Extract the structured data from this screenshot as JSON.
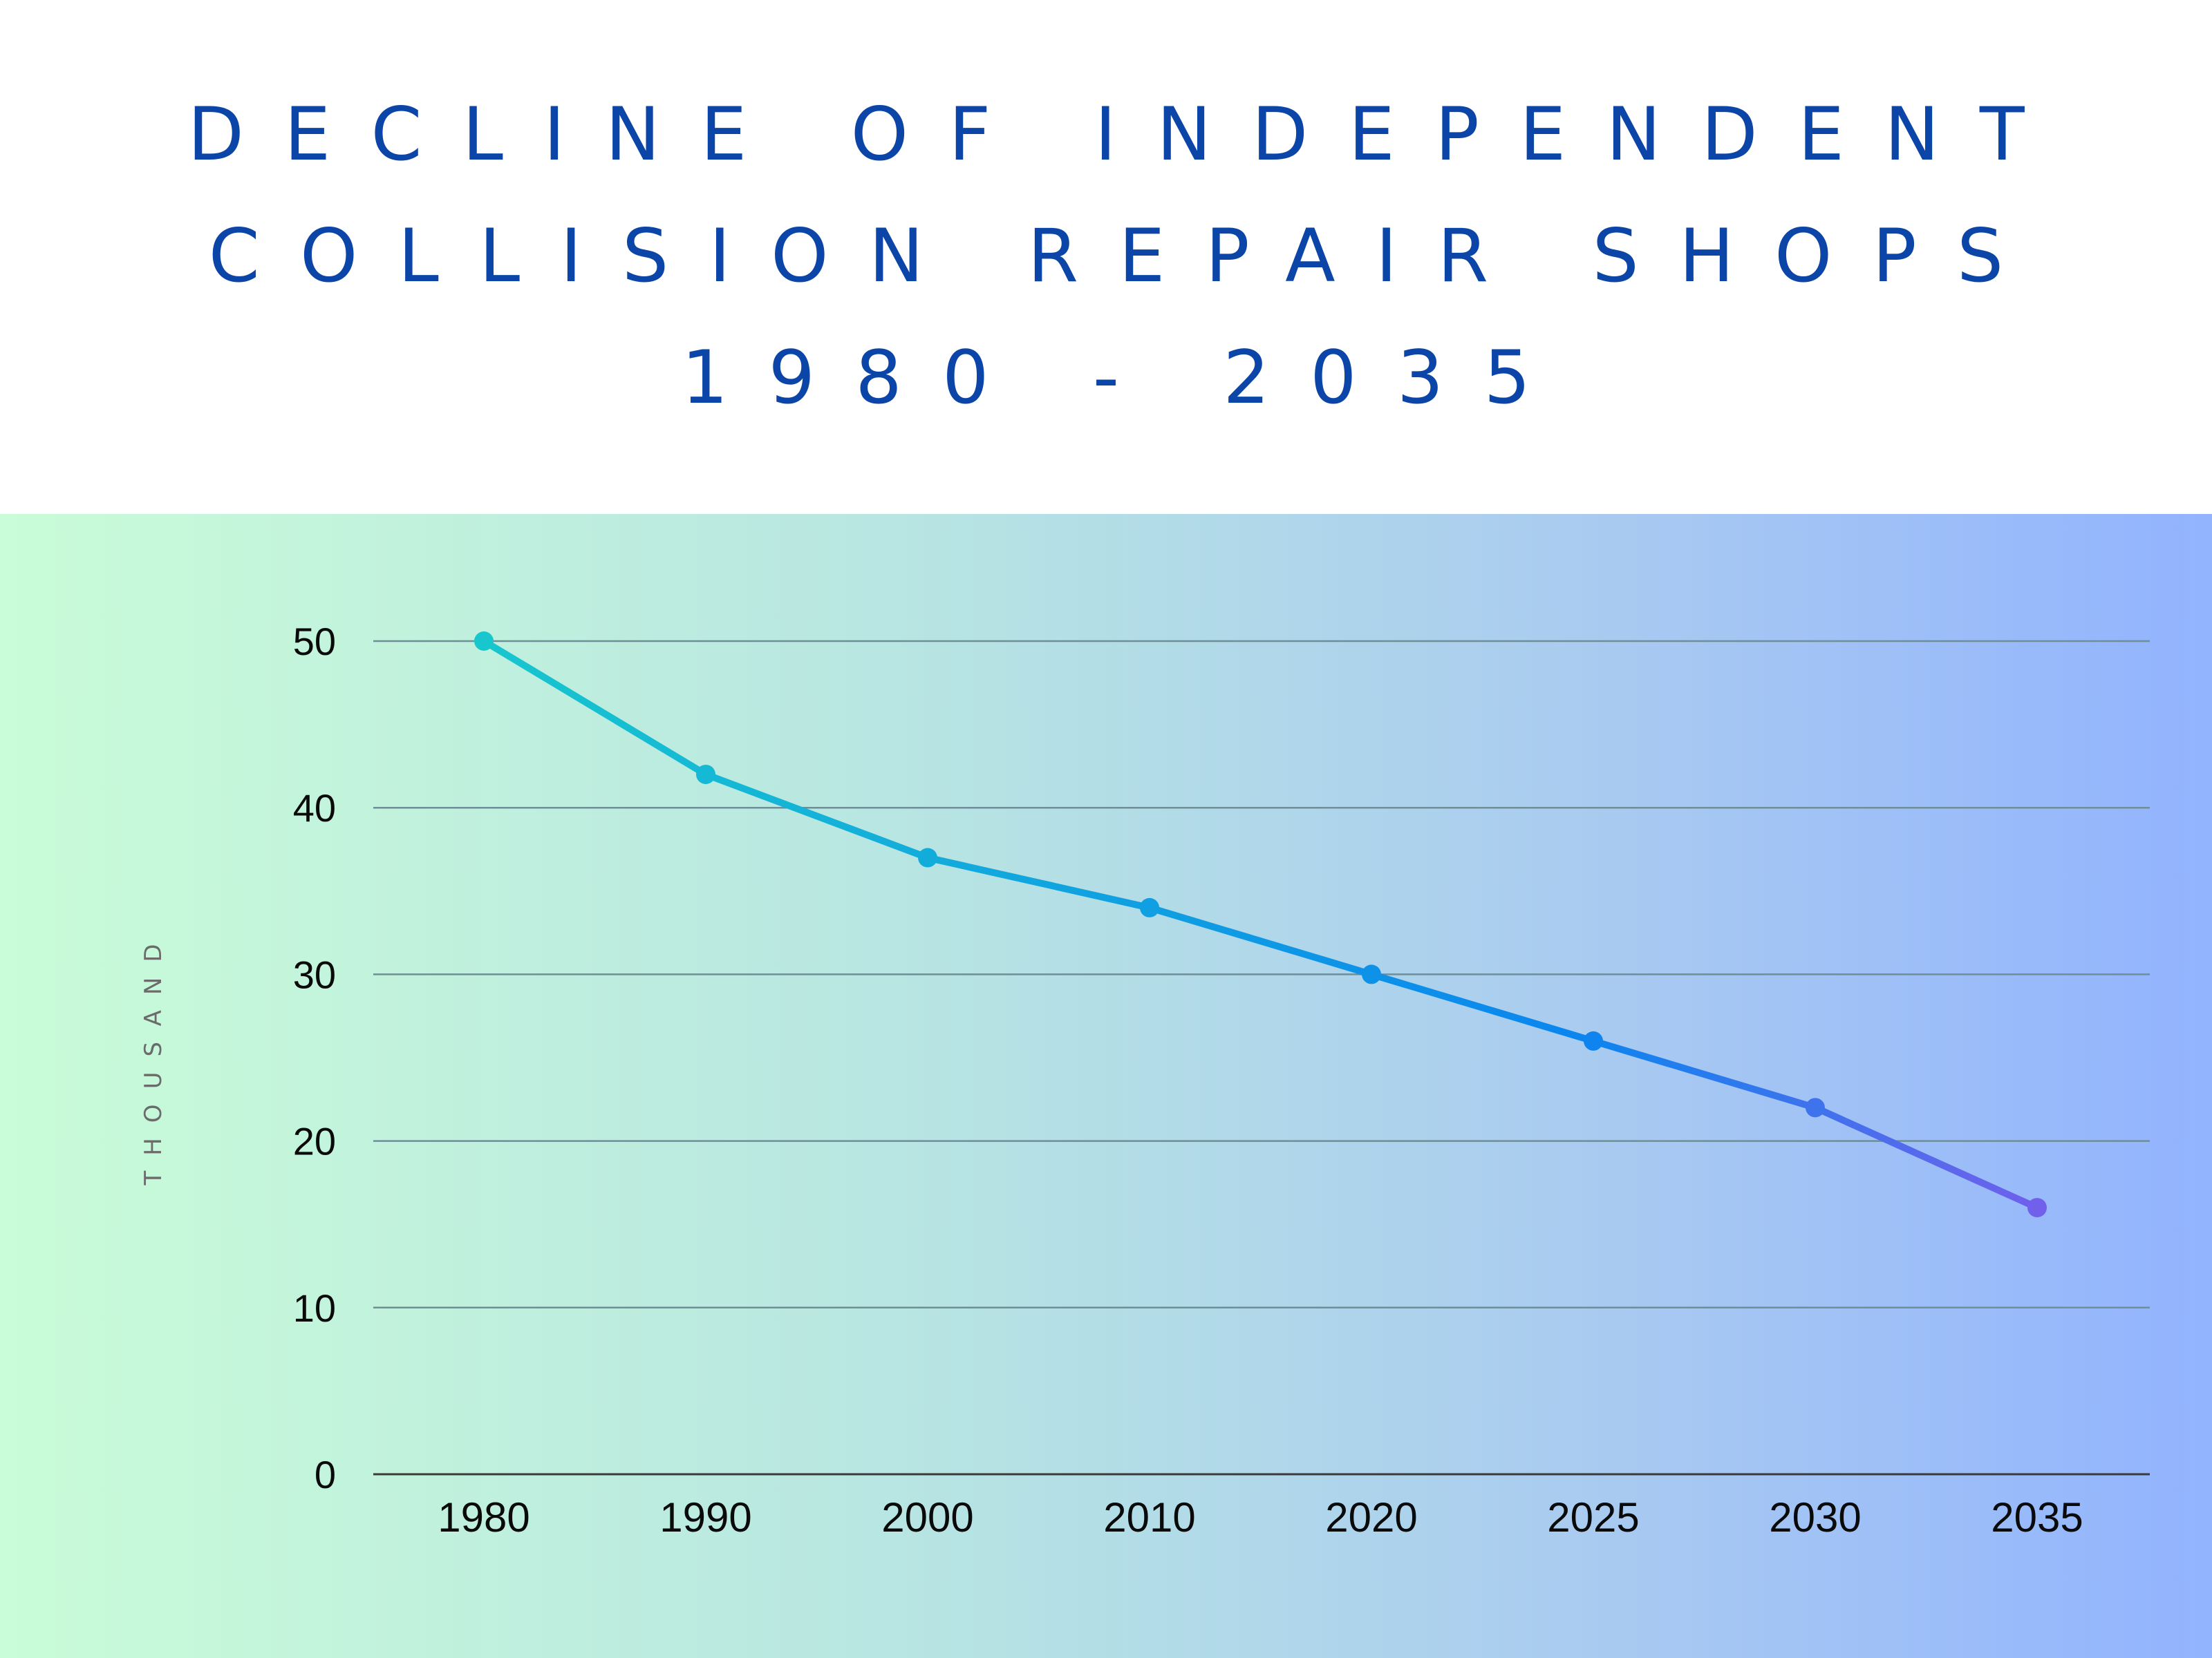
{
  "title_lines": [
    "DECLINE OF INDEPENDENT",
    "COLLISION REPAIR SHOPS",
    "1980 - 2035"
  ],
  "colors": {
    "title": "#0c45a8",
    "line_start": "#18c6ce",
    "line_end": "#7060ec",
    "grid": "#6e8e98",
    "axis": "#3a3a3a"
  },
  "chart_data": {
    "type": "line",
    "title": "DECLINE OF INDEPENDENT COLLISION REPAIR SHOPS 1980 - 2035",
    "xlabel": "",
    "ylabel": "THOUSAND",
    "categories": [
      "1980",
      "1990",
      "2000",
      "2010",
      "2020",
      "2025",
      "2030",
      "2035"
    ],
    "series": [
      {
        "values": [
          50,
          42,
          37,
          34,
          30,
          26,
          22,
          16
        ]
      }
    ],
    "yticks": [
      0,
      10,
      20,
      30,
      40,
      50
    ],
    "ylim": [
      0,
      50
    ],
    "grid": true,
    "legend": "none"
  }
}
